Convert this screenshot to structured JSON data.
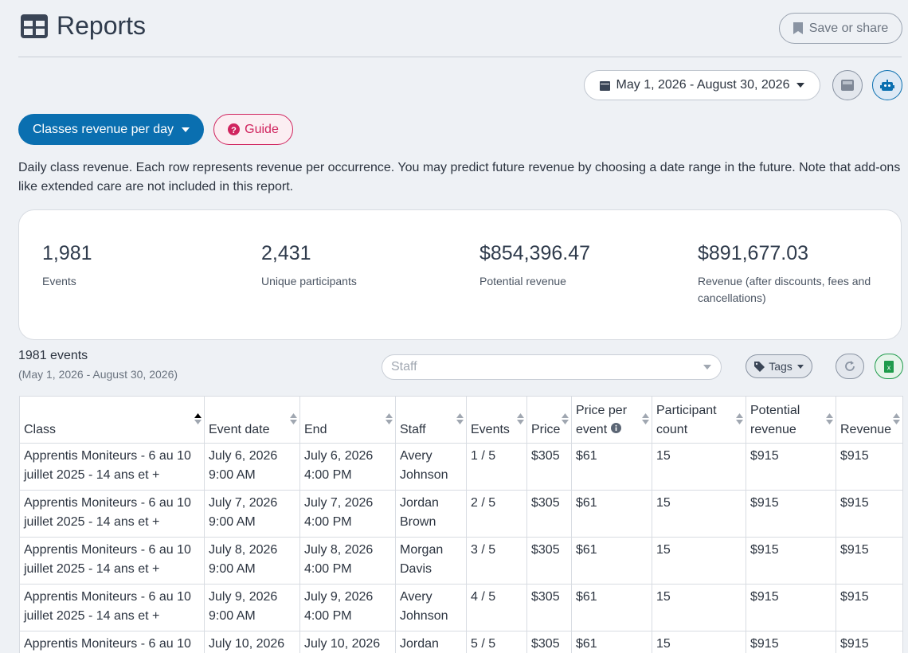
{
  "header": {
    "title": "Reports",
    "save_button": "Save or share"
  },
  "date_range": "May 1, 2026 - August 30, 2026",
  "report_selector": "Classes revenue per day",
  "guide_button": "Guide",
  "description": "Daily class revenue. Each row represents revenue per occurrence. You may predict future revenue by choosing a date range in the future. Note that add-ons like extended care are not included in this report.",
  "stats": [
    {
      "value": "1,981",
      "label": "Events"
    },
    {
      "value": "2,431",
      "label": "Unique participants"
    },
    {
      "value": "$854,396.47",
      "label": "Potential revenue"
    },
    {
      "value": "$891,677.03",
      "label": "Revenue (after discounts, fees and cancellations)"
    }
  ],
  "table_summary": {
    "count_label": "1981 events",
    "range": "(May 1, 2026 - August 30, 2026)"
  },
  "filters": {
    "staff_placeholder": "Staff",
    "tags_button": "Tags"
  },
  "table": {
    "columns": [
      "Class",
      "Event date",
      "End",
      "Staff",
      "Events",
      "Price",
      "Price per event",
      "Participant count",
      "Potential revenue",
      "Revenue"
    ],
    "rows": [
      [
        "Apprentis Moniteurs - 6 au 10 juillet 2025 - 14 ans et +",
        [
          "July 6, 2026",
          "9:00 AM"
        ],
        [
          "July 6, 2026",
          "4:00 PM"
        ],
        "Avery Johnson",
        "1 / 5",
        "$305",
        "$61",
        "15",
        "$915",
        "$915"
      ],
      [
        "Apprentis Moniteurs - 6 au 10 juillet 2025 - 14 ans et +",
        [
          "July 7, 2026",
          "9:00 AM"
        ],
        [
          "July 7, 2026",
          "4:00 PM"
        ],
        "Jordan Brown",
        "2 / 5",
        "$305",
        "$61",
        "15",
        "$915",
        "$915"
      ],
      [
        "Apprentis Moniteurs - 6 au 10 juillet 2025 - 14 ans et +",
        [
          "July 8, 2026",
          "9:00 AM"
        ],
        [
          "July 8, 2026",
          "4:00 PM"
        ],
        "Morgan Davis",
        "3 / 5",
        "$305",
        "$61",
        "15",
        "$915",
        "$915"
      ],
      [
        "Apprentis Moniteurs - 6 au 10 juillet 2025 - 14 ans et +",
        [
          "July 9, 2026",
          "9:00 AM"
        ],
        [
          "July 9, 2026",
          "4:00 PM"
        ],
        "Avery Johnson",
        "4 / 5",
        "$305",
        "$61",
        "15",
        "$915",
        "$915"
      ],
      [
        "Apprentis Moniteurs - 6 au 10",
        [
          "July 10, 2026"
        ],
        [
          "July 10, 2026"
        ],
        "Jordan",
        "5 / 5",
        "$305",
        "$61",
        "15",
        "$915",
        "$915"
      ]
    ]
  }
}
